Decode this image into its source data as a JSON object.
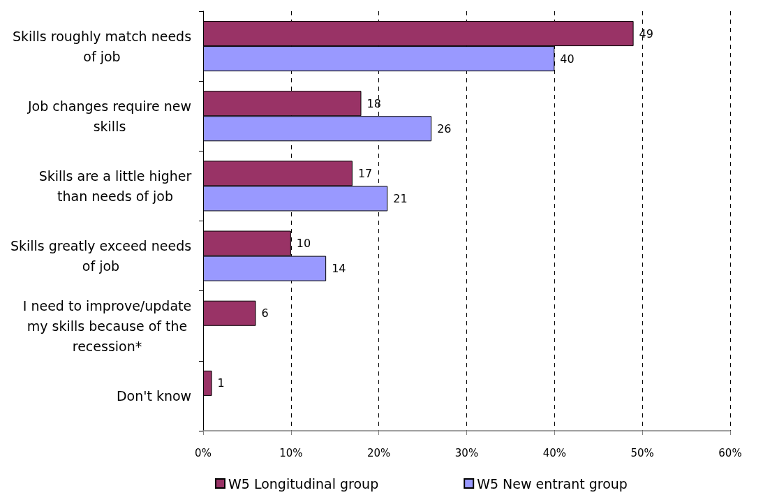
{
  "chart_data": {
    "type": "bar",
    "orientation": "horizontal",
    "categories": [
      "Skills roughly match needs of job",
      "Job changes require new skills",
      "Skills are a little higher than needs of job",
      "Skills greatly exceed needs of job",
      "I need to improve/update my skills because of the recession*",
      "Don't know"
    ],
    "series": [
      {
        "name": "W5 Longitudinal group",
        "color": "#993366",
        "values": [
          49,
          18,
          17,
          10,
          6,
          1
        ]
      },
      {
        "name": "W5 New entrant group",
        "color": "#9999ff",
        "values": [
          40,
          26,
          21,
          14,
          null,
          null
        ]
      }
    ],
    "xlim": [
      0,
      60
    ],
    "xticks": [
      {
        "value": 0,
        "label": "0%"
      },
      {
        "value": 10,
        "label": "10%"
      },
      {
        "value": 20,
        "label": "20%"
      },
      {
        "value": 30,
        "label": "30%"
      },
      {
        "value": 40,
        "label": "40%"
      },
      {
        "value": 50,
        "label": "50%"
      },
      {
        "value": 60,
        "label": "60%"
      }
    ],
    "grid": "x",
    "legend": "bottom",
    "data_labels": true
  }
}
